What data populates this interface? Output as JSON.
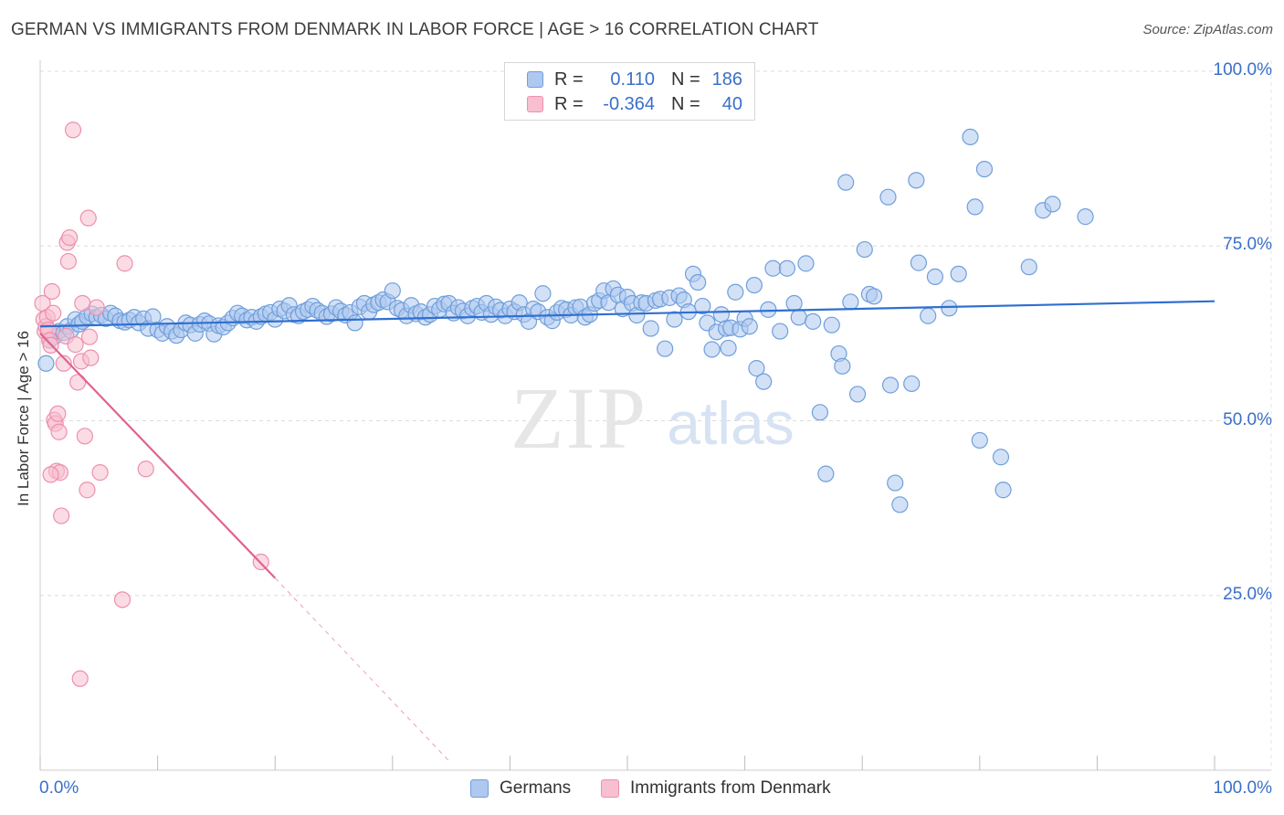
{
  "header": {
    "title": "GERMAN VS IMMIGRANTS FROM DENMARK IN LABOR FORCE | AGE > 16 CORRELATION CHART",
    "source": "Source: ZipAtlas.com"
  },
  "watermark": {
    "zip": "ZIP",
    "atlas": "atlas"
  },
  "legend": {
    "rows": [
      {
        "r_label": "R =",
        "r_value": "0.110",
        "n_label": "N =",
        "n_value": "186"
      },
      {
        "r_label": "R =",
        "r_value": "-0.364",
        "n_label": "N =",
        "n_value": "40"
      }
    ]
  },
  "bottom_legend": {
    "germans": "Germans",
    "denmark": "Immigrants from Denmark"
  },
  "colors": {
    "german_fill": "#aec8ef",
    "german_stroke": "#6f9fdc",
    "german_line": "#2f6fd0",
    "denmark_fill": "#f7bfd0",
    "denmark_stroke": "#ee8fae",
    "denmark_line": "#e0628e",
    "tick_text": "#3a6fc9",
    "grid": "#dcdcdc"
  },
  "chart_data": {
    "type": "scatter",
    "title": "GERMAN VS IMMIGRANTS FROM DENMARK IN LABOR FORCE | AGE > 16 CORRELATION CHART",
    "xlabel": "",
    "ylabel": "In Labor Force | Age > 16",
    "xlim": [
      0,
      100
    ],
    "ylim": [
      0,
      100
    ],
    "x_tick_labels": [
      "0.0%",
      "100.0%"
    ],
    "y_tick_labels": [
      "25.0%",
      "50.0%",
      "75.0%",
      "100.0%"
    ],
    "y_ticks": [
      25,
      50,
      75,
      100
    ],
    "grid": true,
    "legend_position": "top-center",
    "series": [
      {
        "name": "Germans",
        "r": 0.11,
        "n": 186,
        "trend": {
          "x": [
            0,
            100
          ],
          "y": [
            63.5,
            67.1
          ]
        },
        "points": [
          [
            0.5,
            58.2
          ],
          [
            0.8,
            61.5
          ],
          [
            1.2,
            62.0
          ],
          [
            1.6,
            62.8
          ],
          [
            2.0,
            62.6
          ],
          [
            2.3,
            63.5
          ],
          [
            2.6,
            62.9
          ],
          [
            3.0,
            64.5
          ],
          [
            3.3,
            63.8
          ],
          [
            3.6,
            64.2
          ],
          [
            4.0,
            64.9
          ],
          [
            4.4,
            65.3
          ],
          [
            4.8,
            64.8
          ],
          [
            5.2,
            65.1
          ],
          [
            5.6,
            64.6
          ],
          [
            6.0,
            65.4
          ],
          [
            6.4,
            65.0
          ],
          [
            6.8,
            64.3
          ],
          [
            7.2,
            64.1
          ],
          [
            7.6,
            64.4
          ],
          [
            8.0,
            64.8
          ],
          [
            8.4,
            64.0
          ],
          [
            8.8,
            64.6
          ],
          [
            9.2,
            63.2
          ],
          [
            9.6,
            64.9
          ],
          [
            10.0,
            63.0
          ],
          [
            10.4,
            62.5
          ],
          [
            10.8,
            63.5
          ],
          [
            11.2,
            62.8
          ],
          [
            11.6,
            62.2
          ],
          [
            12.0,
            63.0
          ],
          [
            12.4,
            64.0
          ],
          [
            12.8,
            63.7
          ],
          [
            13.2,
            62.5
          ],
          [
            13.6,
            63.8
          ],
          [
            14.0,
            64.3
          ],
          [
            14.4,
            63.9
          ],
          [
            14.8,
            62.4
          ],
          [
            15.2,
            63.6
          ],
          [
            15.6,
            63.4
          ],
          [
            16.0,
            64.0
          ],
          [
            16.4,
            64.7
          ],
          [
            16.8,
            65.4
          ],
          [
            17.2,
            65.0
          ],
          [
            17.6,
            64.4
          ],
          [
            18.0,
            64.8
          ],
          [
            18.4,
            64.2
          ],
          [
            18.8,
            64.9
          ],
          [
            19.2,
            65.3
          ],
          [
            19.6,
            65.5
          ],
          [
            20.0,
            64.5
          ],
          [
            20.4,
            66.0
          ],
          [
            20.8,
            65.7
          ],
          [
            21.2,
            66.5
          ],
          [
            21.6,
            65.2
          ],
          [
            22.0,
            65.0
          ],
          [
            22.4,
            65.6
          ],
          [
            22.8,
            65.9
          ],
          [
            23.2,
            66.4
          ],
          [
            23.6,
            65.8
          ],
          [
            24.0,
            65.4
          ],
          [
            24.4,
            64.9
          ],
          [
            24.8,
            65.3
          ],
          [
            25.2,
            66.2
          ],
          [
            25.6,
            65.7
          ],
          [
            26.0,
            65.1
          ],
          [
            26.4,
            65.5
          ],
          [
            26.8,
            64.0
          ],
          [
            27.2,
            66.3
          ],
          [
            27.6,
            66.8
          ],
          [
            28.0,
            65.6
          ],
          [
            28.4,
            66.6
          ],
          [
            28.8,
            66.9
          ],
          [
            29.2,
            67.3
          ],
          [
            29.6,
            67.0
          ],
          [
            30.0,
            68.6
          ],
          [
            30.4,
            66.1
          ],
          [
            30.8,
            65.8
          ],
          [
            31.2,
            65.0
          ],
          [
            31.6,
            66.5
          ],
          [
            32.0,
            65.3
          ],
          [
            32.4,
            65.6
          ],
          [
            32.8,
            64.8
          ],
          [
            33.2,
            65.2
          ],
          [
            33.6,
            66.4
          ],
          [
            34.0,
            65.9
          ],
          [
            34.4,
            66.7
          ],
          [
            34.8,
            66.8
          ],
          [
            35.2,
            65.4
          ],
          [
            35.6,
            66.2
          ],
          [
            36.0,
            65.7
          ],
          [
            36.4,
            65.0
          ],
          [
            36.8,
            66.1
          ],
          [
            37.2,
            66.4
          ],
          [
            37.6,
            65.5
          ],
          [
            38.0,
            66.8
          ],
          [
            38.4,
            65.2
          ],
          [
            38.8,
            66.3
          ],
          [
            39.2,
            65.8
          ],
          [
            39.6,
            65.0
          ],
          [
            40.0,
            66.0
          ],
          [
            40.4,
            65.6
          ],
          [
            40.8,
            66.9
          ],
          [
            41.2,
            65.2
          ],
          [
            41.6,
            64.2
          ],
          [
            42.0,
            66.0
          ],
          [
            42.4,
            65.6
          ],
          [
            42.8,
            68.2
          ],
          [
            43.2,
            64.8
          ],
          [
            43.6,
            64.3
          ],
          [
            44.0,
            65.5
          ],
          [
            44.4,
            66.1
          ],
          [
            44.8,
            65.9
          ],
          [
            45.2,
            65.1
          ],
          [
            45.6,
            66.2
          ],
          [
            46.0,
            66.3
          ],
          [
            46.4,
            64.8
          ],
          [
            46.8,
            65.2
          ],
          [
            47.2,
            66.8
          ],
          [
            47.6,
            67.2
          ],
          [
            48.0,
            68.6
          ],
          [
            48.4,
            66.9
          ],
          [
            48.8,
            68.9
          ],
          [
            49.2,
            68.0
          ],
          [
            49.6,
            66.0
          ],
          [
            50.0,
            67.7
          ],
          [
            50.4,
            66.8
          ],
          [
            50.8,
            65.1
          ],
          [
            51.2,
            66.9
          ],
          [
            51.6,
            66.8
          ],
          [
            52.0,
            63.2
          ],
          [
            52.4,
            67.2
          ],
          [
            52.8,
            67.4
          ],
          [
            53.2,
            60.3
          ],
          [
            53.6,
            67.6
          ],
          [
            54.0,
            64.5
          ],
          [
            54.4,
            67.9
          ],
          [
            54.8,
            67.3
          ],
          [
            55.2,
            65.6
          ],
          [
            55.6,
            71.0
          ],
          [
            56.0,
            69.8
          ],
          [
            56.4,
            66.4
          ],
          [
            56.8,
            64.0
          ],
          [
            57.2,
            60.2
          ],
          [
            57.6,
            62.7
          ],
          [
            58.0,
            65.2
          ],
          [
            58.4,
            63.2
          ],
          [
            58.8,
            63.3
          ],
          [
            59.2,
            68.4
          ],
          [
            59.6,
            63.1
          ],
          [
            60.0,
            64.6
          ],
          [
            60.4,
            63.5
          ],
          [
            61.0,
            57.5
          ],
          [
            61.6,
            55.6
          ],
          [
            62.0,
            65.9
          ],
          [
            62.4,
            71.8
          ],
          [
            63.0,
            62.8
          ],
          [
            63.6,
            71.8
          ],
          [
            64.2,
            66.8
          ],
          [
            64.6,
            64.8
          ],
          [
            65.2,
            72.5
          ],
          [
            65.8,
            64.2
          ],
          [
            66.4,
            51.2
          ],
          [
            66.9,
            42.4
          ],
          [
            67.4,
            63.7
          ],
          [
            68.0,
            59.6
          ],
          [
            68.3,
            57.8
          ],
          [
            68.6,
            84.1
          ],
          [
            69.6,
            53.8
          ],
          [
            70.2,
            74.5
          ],
          [
            70.6,
            68.1
          ],
          [
            71.0,
            67.8
          ],
          [
            72.2,
            82.0
          ],
          [
            72.4,
            55.1
          ],
          [
            72.8,
            41.1
          ],
          [
            73.2,
            38.0
          ],
          [
            74.2,
            55.3
          ],
          [
            74.6,
            84.4
          ],
          [
            74.8,
            72.6
          ],
          [
            75.6,
            65.0
          ],
          [
            77.4,
            66.1
          ],
          [
            78.2,
            71.0
          ],
          [
            79.2,
            90.6
          ],
          [
            79.6,
            80.6
          ],
          [
            80.0,
            47.2
          ],
          [
            80.4,
            86.0
          ],
          [
            81.8,
            44.8
          ],
          [
            82.0,
            40.1
          ],
          [
            85.4,
            80.1
          ],
          [
            86.2,
            81.0
          ],
          [
            89.0,
            79.2
          ],
          [
            84.2,
            72.0
          ],
          [
            76.2,
            70.6
          ],
          [
            69.0,
            67.0
          ],
          [
            60.8,
            69.4
          ],
          [
            58.6,
            60.4
          ]
        ]
      },
      {
        "name": "Immigrants from Denmark",
        "r": -0.364,
        "n": 40,
        "trend": {
          "x": [
            0,
            20
          ],
          "y": [
            62.5,
            27.5
          ]
        },
        "trend_dashed": {
          "x": [
            20,
            35
          ],
          "y": [
            27.5,
            1.0
          ]
        },
        "points": [
          [
            0.2,
            66.8
          ],
          [
            0.3,
            64.5
          ],
          [
            0.4,
            62.8
          ],
          [
            0.5,
            63.5
          ],
          [
            0.6,
            64.8
          ],
          [
            0.7,
            63.0
          ],
          [
            0.8,
            61.5
          ],
          [
            0.9,
            60.8
          ],
          [
            1.0,
            68.5
          ],
          [
            1.1,
            65.4
          ],
          [
            1.2,
            50.1
          ],
          [
            1.3,
            49.6
          ],
          [
            1.4,
            42.8
          ],
          [
            1.6,
            48.4
          ],
          [
            1.7,
            42.6
          ],
          [
            1.8,
            36.4
          ],
          [
            2.0,
            58.2
          ],
          [
            2.2,
            62.1
          ],
          [
            2.3,
            75.5
          ],
          [
            2.4,
            72.8
          ],
          [
            2.5,
            76.2
          ],
          [
            2.8,
            91.6
          ],
          [
            3.0,
            60.9
          ],
          [
            3.2,
            55.5
          ],
          [
            3.4,
            13.1
          ],
          [
            3.5,
            58.5
          ],
          [
            3.6,
            66.8
          ],
          [
            3.8,
            47.8
          ],
          [
            4.0,
            40.1
          ],
          [
            4.1,
            79.0
          ],
          [
            4.2,
            62.0
          ],
          [
            4.3,
            59.0
          ],
          [
            4.8,
            66.2
          ],
          [
            5.1,
            42.6
          ],
          [
            7.2,
            72.5
          ],
          [
            7.0,
            24.4
          ],
          [
            9.0,
            43.1
          ],
          [
            18.8,
            29.8
          ],
          [
            1.5,
            51.0
          ],
          [
            0.9,
            42.3
          ]
        ]
      }
    ]
  }
}
